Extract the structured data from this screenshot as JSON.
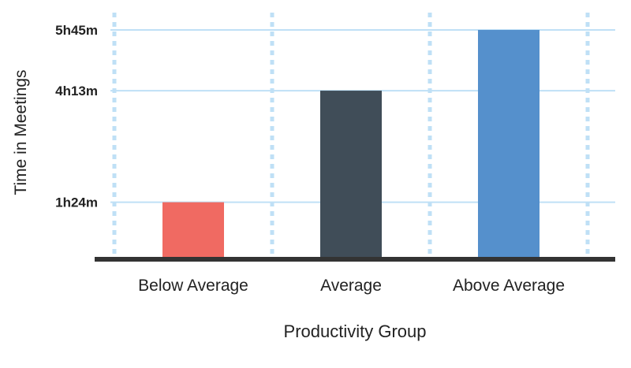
{
  "chart_data": {
    "type": "bar",
    "categories": [
      "Below Average",
      "Average",
      "Above Average"
    ],
    "values": [
      84,
      253,
      345
    ],
    "value_labels": [
      "1h24m",
      "4h13m",
      "5h45m"
    ],
    "value_unit": "minutes",
    "colors": [
      "#f06a62",
      "#404d58",
      "#5590cc"
    ],
    "title": "",
    "xlabel": "Productivity Group",
    "ylabel": "Time in Meetings",
    "yticks": [
      {
        "value": 84,
        "label": "1h24m"
      },
      {
        "value": 253,
        "label": "4h13m"
      },
      {
        "value": 345,
        "label": "5h45m"
      }
    ],
    "ylim": [
      0,
      345
    ],
    "grid": true,
    "grid_color": "#bfe0f6",
    "baseline_color": "#333333"
  }
}
